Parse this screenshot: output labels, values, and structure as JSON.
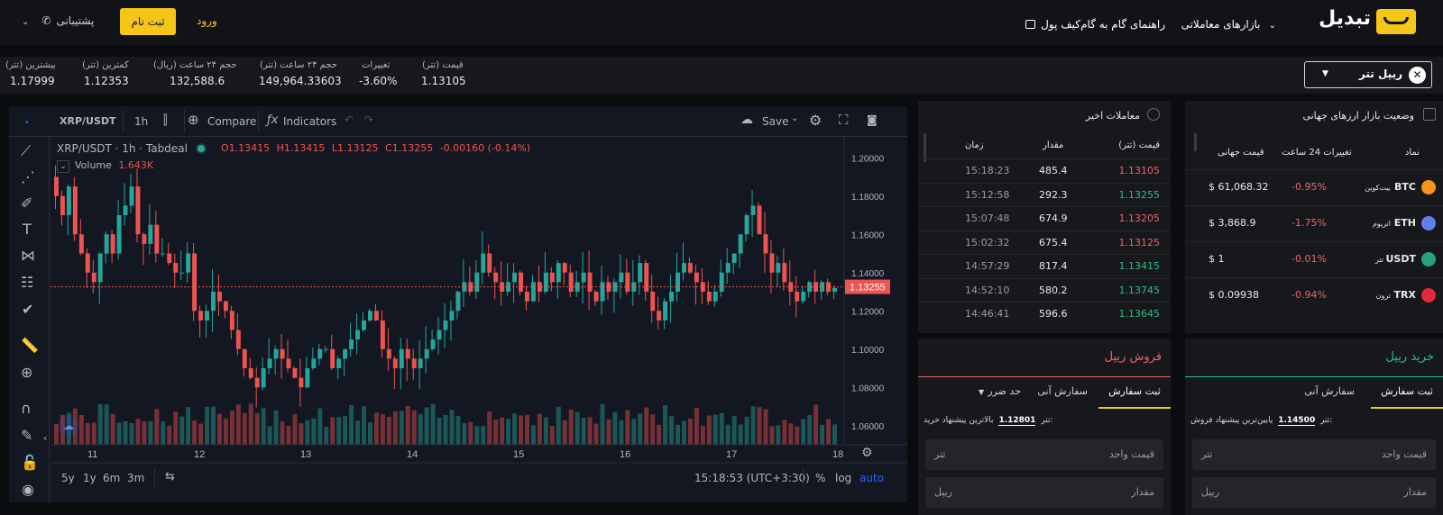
{
  "header": {
    "logo_text": "تبدیل",
    "nav": [
      {
        "label": "بازارهای معاملاتی"
      },
      {
        "label": "راهنمای گام به گام"
      },
      {
        "label": "کیف پول"
      }
    ],
    "signup_label": "ثبت نام",
    "login_label": "ورود",
    "support_label": "پشتیبانی"
  },
  "stats": {
    "pair_label": "ریپل تتر",
    "items": [
      {
        "label": "قیمت (تتر)",
        "value": "1.13105"
      },
      {
        "label": "تغییرات",
        "value": "-3.60%"
      },
      {
        "label": "حجم ۲۴ ساعت (تتر)",
        "value": "149,964.33603"
      },
      {
        "label": "حجم ۲۴ ساعت (ریال)",
        "value": "132,588.6"
      },
      {
        "label": "کمترین (تتر)",
        "value": "1.12353"
      },
      {
        "label": "بیشترین (تتر)",
        "value": "1.17999"
      }
    ]
  },
  "chart": {
    "toolbar": {
      "symbol": "XRP/USDT",
      "interval": "1h",
      "compare": "Compare",
      "indicators": "Indicators",
      "save": "Save"
    },
    "legend": {
      "title": "XRP/USDT · 1h · Tabdeal",
      "o": "O1.13415",
      "h": "H1.13415",
      "l": "L1.13125",
      "c": "C1.13255",
      "chg": "-0.00160 (-0.14%)"
    },
    "volume_label": "Volume",
    "volume_value": "1.643K",
    "price_ticks": [
      "1.20000",
      "1.18000",
      "1.16000",
      "1.14000",
      "1.12000",
      "1.10000",
      "1.08000",
      "1.06000"
    ],
    "last_price": "1.13255",
    "date_ticks": [
      "11",
      "12",
      "13",
      "14",
      "15",
      "16",
      "17",
      "18"
    ],
    "ranges": [
      "5y",
      "1y",
      "6m",
      "3m"
    ],
    "time": "15:18:53 (UTC+3:30)",
    "bottom_opts": {
      "pct": "%",
      "log": "log",
      "auto": "auto"
    }
  },
  "chart_data": {
    "type": "candlestick",
    "x_ticks": [
      "11",
      "12",
      "13",
      "14",
      "15",
      "16",
      "17",
      "18"
    ],
    "y_ticks": [
      1.06,
      1.08,
      1.1,
      1.12,
      1.14,
      1.16,
      1.18,
      1.2
    ],
    "ylim": [
      1.05,
      1.21
    ],
    "last_price": 1.13255,
    "close_path": [
      1.18,
      1.17,
      1.185,
      1.16,
      1.15,
      1.14,
      1.135,
      1.15,
      1.16,
      1.15,
      1.17,
      1.175,
      1.185,
      1.16,
      1.155,
      1.165,
      1.15,
      1.15,
      1.145,
      1.14,
      1.14,
      1.15,
      1.12,
      1.115,
      1.12,
      1.13,
      1.125,
      1.12,
      1.11,
      1.1,
      1.09,
      1.085,
      1.08,
      1.09,
      1.095,
      1.1,
      1.095,
      1.09,
      1.085,
      1.08,
      1.09,
      1.095,
      1.1,
      1.1,
      1.09,
      1.095,
      1.1,
      1.105,
      1.11,
      1.115,
      1.12,
      1.115,
      1.1,
      1.095,
      1.09,
      1.1,
      1.095,
      1.09,
      1.095,
      1.1,
      1.105,
      1.11,
      1.115,
      1.12,
      1.13,
      1.135,
      1.13,
      1.14,
      1.15,
      1.14,
      1.135,
      1.13,
      1.135,
      1.14,
      1.13,
      1.125,
      1.135,
      1.13,
      1.14,
      1.135,
      1.145,
      1.14,
      1.13,
      1.135,
      1.14,
      1.13,
      1.125,
      1.135,
      1.13,
      1.135,
      1.14,
      1.13,
      1.135,
      1.145,
      1.13,
      1.12,
      1.115,
      1.125,
      1.13,
      1.14,
      1.145,
      1.14,
      1.135,
      1.13,
      1.125,
      1.13,
      1.14,
      1.145,
      1.15,
      1.16,
      1.17,
      1.175,
      1.16,
      1.15,
      1.14,
      1.145,
      1.135,
      1.13,
      1.125,
      1.13,
      1.135,
      1.13,
      1.135,
      1.13,
      1.132
    ]
  },
  "trades": {
    "title": "معاملات اخیر",
    "headers": {
      "price": "قیمت (تتر)",
      "amount": "مقدار",
      "time": "زمان"
    },
    "rows": [
      {
        "price": "1.13105",
        "amount": "485.4",
        "time": "15:18:23",
        "side": "sell"
      },
      {
        "price": "1.13255",
        "amount": "292.3",
        "time": "15:12:58",
        "side": "buy"
      },
      {
        "price": "1.13205",
        "amount": "674.9",
        "time": "15:07:48",
        "side": "sell"
      },
      {
        "price": "1.13125",
        "amount": "675.4",
        "time": "15:02:32",
        "side": "sell"
      },
      {
        "price": "1.13415",
        "amount": "817.4",
        "time": "14:57:29",
        "side": "buy"
      },
      {
        "price": "1.13745",
        "amount": "580.2",
        "time": "14:52:10",
        "side": "buy"
      },
      {
        "price": "1.13645",
        "amount": "596.6",
        "time": "14:46:41",
        "side": "buy"
      }
    ]
  },
  "global_market": {
    "title": "وضعیت بازار ارزهای جهانی",
    "headers": {
      "symbol": "نماد",
      "change": "تغییرات 24 ساعت",
      "price": "قیمت جهانی"
    },
    "rows": [
      {
        "symbol": "BTC",
        "name": "بیت‌کوین",
        "change": "-0.95%",
        "price": "$ 61,068.32",
        "color": "#f7931a"
      },
      {
        "symbol": "ETH",
        "name": "اتریوم",
        "change": "-1.75%",
        "price": "$ 3,868.9",
        "color": "#627eea"
      },
      {
        "symbol": "USDT",
        "name": "تتر",
        "change": "-0.01%",
        "price": "$ 1",
        "color": "#26a17b"
      },
      {
        "symbol": "TRX",
        "name": "ترون",
        "change": "-0.94%",
        "price": "$ 0.09938",
        "color": "#e4283a"
      }
    ]
  },
  "sell_panel": {
    "title": "فروش ریپل",
    "tabs": [
      "ثبت سفارش",
      "سفارش آنی",
      "حد ضرر"
    ],
    "best_label": "بالاترین پیشنهاد خرید:",
    "best_value": "1.12801",
    "best_unit": "تتر",
    "price_label": "قیمت واحد",
    "price_unit": "تتر",
    "amount_label": "مقدار",
    "amount_unit": "ریپل"
  },
  "buy_panel": {
    "title": "خرید ریپل",
    "tabs": [
      "ثبت سفارش",
      "سفارش آنی"
    ],
    "best_label": "پایین‌ترین پیشنهاد فروش:",
    "best_value": "1.14500",
    "best_unit": "تتر",
    "price_label": "قیمت واحد",
    "price_unit": "تتر",
    "amount_label": "مقدار",
    "amount_unit": "ریپل"
  },
  "colors": {
    "accent": "#f5c518",
    "up": "#2ebd85",
    "down": "#f0616d",
    "chart_up": "#26a69a",
    "chart_down": "#ef5350"
  }
}
